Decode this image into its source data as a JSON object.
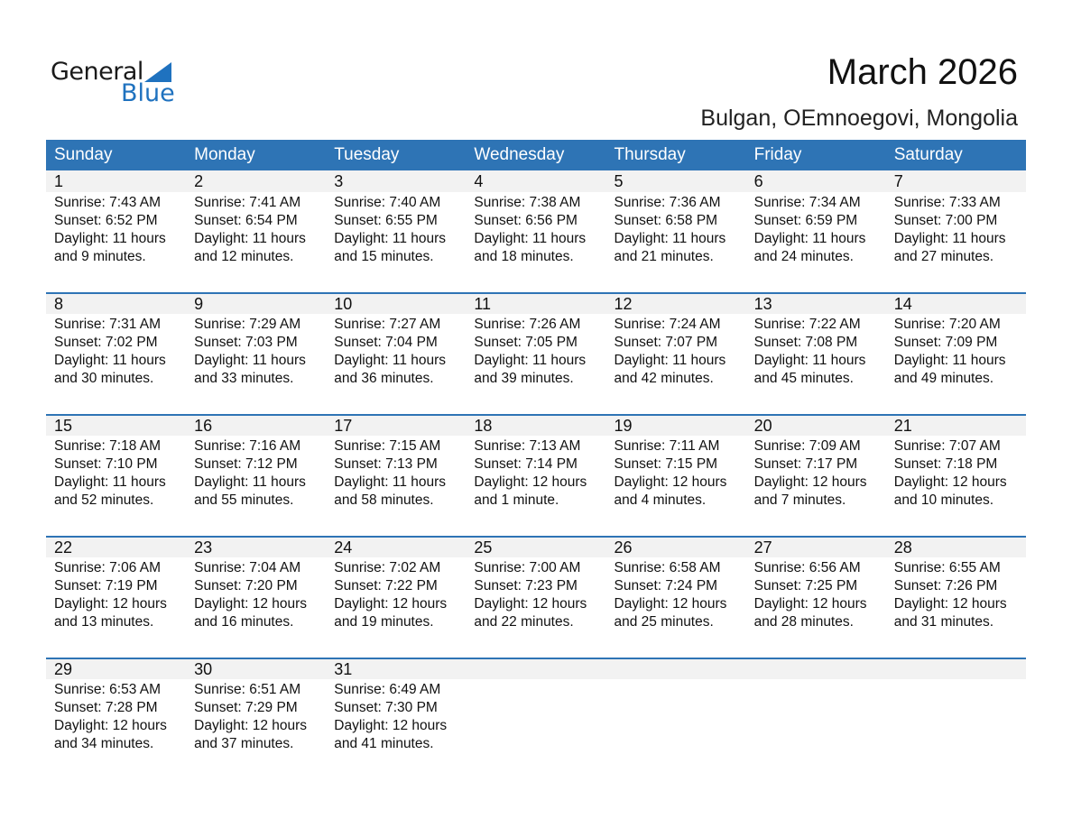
{
  "logo": {
    "text_general": "General",
    "text_blue": "Blue"
  },
  "title": "March 2026",
  "location": "Bulgan, OEmnoegovi, Mongolia",
  "colors": {
    "header": "#2e74b5",
    "day_band": "#f2f2f2",
    "logo_blue": "#1f72bf"
  },
  "weekdays": [
    "Sunday",
    "Monday",
    "Tuesday",
    "Wednesday",
    "Thursday",
    "Friday",
    "Saturday"
  ],
  "weeks": [
    [
      {
        "n": "1",
        "sr": "Sunrise: 7:43 AM",
        "ss": "Sunset: 6:52 PM",
        "d1": "Daylight: 11 hours",
        "d2": "and 9 minutes."
      },
      {
        "n": "2",
        "sr": "Sunrise: 7:41 AM",
        "ss": "Sunset: 6:54 PM",
        "d1": "Daylight: 11 hours",
        "d2": "and 12 minutes."
      },
      {
        "n": "3",
        "sr": "Sunrise: 7:40 AM",
        "ss": "Sunset: 6:55 PM",
        "d1": "Daylight: 11 hours",
        "d2": "and 15 minutes."
      },
      {
        "n": "4",
        "sr": "Sunrise: 7:38 AM",
        "ss": "Sunset: 6:56 PM",
        "d1": "Daylight: 11 hours",
        "d2": "and 18 minutes."
      },
      {
        "n": "5",
        "sr": "Sunrise: 7:36 AM",
        "ss": "Sunset: 6:58 PM",
        "d1": "Daylight: 11 hours",
        "d2": "and 21 minutes."
      },
      {
        "n": "6",
        "sr": "Sunrise: 7:34 AM",
        "ss": "Sunset: 6:59 PM",
        "d1": "Daylight: 11 hours",
        "d2": "and 24 minutes."
      },
      {
        "n": "7",
        "sr": "Sunrise: 7:33 AM",
        "ss": "Sunset: 7:00 PM",
        "d1": "Daylight: 11 hours",
        "d2": "and 27 minutes."
      }
    ],
    [
      {
        "n": "8",
        "sr": "Sunrise: 7:31 AM",
        "ss": "Sunset: 7:02 PM",
        "d1": "Daylight: 11 hours",
        "d2": "and 30 minutes."
      },
      {
        "n": "9",
        "sr": "Sunrise: 7:29 AM",
        "ss": "Sunset: 7:03 PM",
        "d1": "Daylight: 11 hours",
        "d2": "and 33 minutes."
      },
      {
        "n": "10",
        "sr": "Sunrise: 7:27 AM",
        "ss": "Sunset: 7:04 PM",
        "d1": "Daylight: 11 hours",
        "d2": "and 36 minutes."
      },
      {
        "n": "11",
        "sr": "Sunrise: 7:26 AM",
        "ss": "Sunset: 7:05 PM",
        "d1": "Daylight: 11 hours",
        "d2": "and 39 minutes."
      },
      {
        "n": "12",
        "sr": "Sunrise: 7:24 AM",
        "ss": "Sunset: 7:07 PM",
        "d1": "Daylight: 11 hours",
        "d2": "and 42 minutes."
      },
      {
        "n": "13",
        "sr": "Sunrise: 7:22 AM",
        "ss": "Sunset: 7:08 PM",
        "d1": "Daylight: 11 hours",
        "d2": "and 45 minutes."
      },
      {
        "n": "14",
        "sr": "Sunrise: 7:20 AM",
        "ss": "Sunset: 7:09 PM",
        "d1": "Daylight: 11 hours",
        "d2": "and 49 minutes."
      }
    ],
    [
      {
        "n": "15",
        "sr": "Sunrise: 7:18 AM",
        "ss": "Sunset: 7:10 PM",
        "d1": "Daylight: 11 hours",
        "d2": "and 52 minutes."
      },
      {
        "n": "16",
        "sr": "Sunrise: 7:16 AM",
        "ss": "Sunset: 7:12 PM",
        "d1": "Daylight: 11 hours",
        "d2": "and 55 minutes."
      },
      {
        "n": "17",
        "sr": "Sunrise: 7:15 AM",
        "ss": "Sunset: 7:13 PM",
        "d1": "Daylight: 11 hours",
        "d2": "and 58 minutes."
      },
      {
        "n": "18",
        "sr": "Sunrise: 7:13 AM",
        "ss": "Sunset: 7:14 PM",
        "d1": "Daylight: 12 hours",
        "d2": "and 1 minute."
      },
      {
        "n": "19",
        "sr": "Sunrise: 7:11 AM",
        "ss": "Sunset: 7:15 PM",
        "d1": "Daylight: 12 hours",
        "d2": "and 4 minutes."
      },
      {
        "n": "20",
        "sr": "Sunrise: 7:09 AM",
        "ss": "Sunset: 7:17 PM",
        "d1": "Daylight: 12 hours",
        "d2": "and 7 minutes."
      },
      {
        "n": "21",
        "sr": "Sunrise: 7:07 AM",
        "ss": "Sunset: 7:18 PM",
        "d1": "Daylight: 12 hours",
        "d2": "and 10 minutes."
      }
    ],
    [
      {
        "n": "22",
        "sr": "Sunrise: 7:06 AM",
        "ss": "Sunset: 7:19 PM",
        "d1": "Daylight: 12 hours",
        "d2": "and 13 minutes."
      },
      {
        "n": "23",
        "sr": "Sunrise: 7:04 AM",
        "ss": "Sunset: 7:20 PM",
        "d1": "Daylight: 12 hours",
        "d2": "and 16 minutes."
      },
      {
        "n": "24",
        "sr": "Sunrise: 7:02 AM",
        "ss": "Sunset: 7:22 PM",
        "d1": "Daylight: 12 hours",
        "d2": "and 19 minutes."
      },
      {
        "n": "25",
        "sr": "Sunrise: 7:00 AM",
        "ss": "Sunset: 7:23 PM",
        "d1": "Daylight: 12 hours",
        "d2": "and 22 minutes."
      },
      {
        "n": "26",
        "sr": "Sunrise: 6:58 AM",
        "ss": "Sunset: 7:24 PM",
        "d1": "Daylight: 12 hours",
        "d2": "and 25 minutes."
      },
      {
        "n": "27",
        "sr": "Sunrise: 6:56 AM",
        "ss": "Sunset: 7:25 PM",
        "d1": "Daylight: 12 hours",
        "d2": "and 28 minutes."
      },
      {
        "n": "28",
        "sr": "Sunrise: 6:55 AM",
        "ss": "Sunset: 7:26 PM",
        "d1": "Daylight: 12 hours",
        "d2": "and 31 minutes."
      }
    ],
    [
      {
        "n": "29",
        "sr": "Sunrise: 6:53 AM",
        "ss": "Sunset: 7:28 PM",
        "d1": "Daylight: 12 hours",
        "d2": "and 34 minutes."
      },
      {
        "n": "30",
        "sr": "Sunrise: 6:51 AM",
        "ss": "Sunset: 7:29 PM",
        "d1": "Daylight: 12 hours",
        "d2": "and 37 minutes."
      },
      {
        "n": "31",
        "sr": "Sunrise: 6:49 AM",
        "ss": "Sunset: 7:30 PM",
        "d1": "Daylight: 12 hours",
        "d2": "and 41 minutes."
      },
      null,
      null,
      null,
      null
    ]
  ]
}
